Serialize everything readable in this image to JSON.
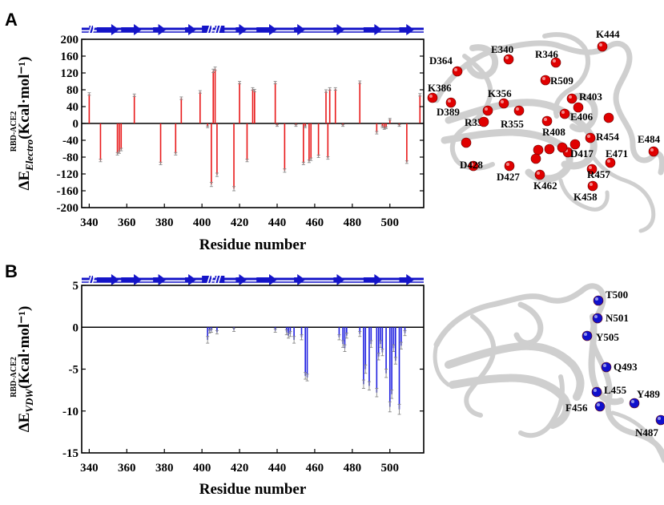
{
  "colors": {
    "electro_bar": "#e8191a",
    "vdw_bar": "#2020e0",
    "sse_bar": "#1414c8",
    "electro_sphere": "#e00000",
    "vdw_sphere": "#1010cc",
    "protein": "#d9d9d9"
  },
  "panels": {
    "A": {
      "letter": "A"
    },
    "B": {
      "letter": "B"
    }
  },
  "chart_data": [
    {
      "panel": "A",
      "type": "bar",
      "xlabel": "Residue number",
      "ylabel_super": "RBD-ACE2",
      "ylabel": "ΔE",
      "ylabel_sub": "Electro",
      "ylabel_unit": "(Kcal·mol⁻¹)",
      "xlim": [
        336,
        518
      ],
      "ylim": [
        -200,
        200
      ],
      "xticks": [
        340,
        360,
        380,
        400,
        420,
        440,
        460,
        480,
        500
      ],
      "yticks": [
        200,
        160,
        120,
        80,
        40,
        0,
        -40,
        -80,
        -120,
        -160,
        -200
      ],
      "ytick_labels": [
        "200",
        "160",
        "120",
        "80",
        "40",
        "0",
        "-40",
        "-80",
        "-120",
        "-160",
        "-200"
      ],
      "grid": false,
      "bars": [
        {
          "x": 340,
          "y": 70,
          "err": 3
        },
        {
          "x": 346,
          "y": -88,
          "err": 3
        },
        {
          "x": 355,
          "y": -72,
          "err": 3
        },
        {
          "x": 356,
          "y": -68,
          "err": 3
        },
        {
          "x": 357,
          "y": -62,
          "err": 3
        },
        {
          "x": 364,
          "y": 67,
          "err": 3
        },
        {
          "x": 378,
          "y": -95,
          "err": 3
        },
        {
          "x": 386,
          "y": -72,
          "err": 3
        },
        {
          "x": 389,
          "y": 60,
          "err": 3
        },
        {
          "x": 399,
          "y": 75,
          "err": 3
        },
        {
          "x": 403,
          "y": -8,
          "err": 2
        },
        {
          "x": 405,
          "y": -145,
          "err": 5
        },
        {
          "x": 406,
          "y": 125,
          "err": 4
        },
        {
          "x": 407,
          "y": 130,
          "err": 4
        },
        {
          "x": 408,
          "y": -122,
          "err": 4
        },
        {
          "x": 417,
          "y": -155,
          "err": 5
        },
        {
          "x": 420,
          "y": 97,
          "err": 3
        },
        {
          "x": 424,
          "y": -88,
          "err": 3
        },
        {
          "x": 427,
          "y": 82,
          "err": 3
        },
        {
          "x": 428,
          "y": 78,
          "err": 3
        },
        {
          "x": 439,
          "y": 97,
          "err": 3
        },
        {
          "x": 440,
          "y": -5,
          "err": 2
        },
        {
          "x": 444,
          "y": -112,
          "err": 4
        },
        {
          "x": 450,
          "y": -5,
          "err": 2
        },
        {
          "x": 454,
          "y": -95,
          "err": 3
        },
        {
          "x": 455,
          "y": -8,
          "err": 2
        },
        {
          "x": 457,
          "y": -90,
          "err": 3
        },
        {
          "x": 458,
          "y": -85,
          "err": 3
        },
        {
          "x": 462,
          "y": -78,
          "err": 3
        },
        {
          "x": 466,
          "y": 77,
          "err": 3
        },
        {
          "x": 467,
          "y": -82,
          "err": 3
        },
        {
          "x": 468,
          "y": 82,
          "err": 3
        },
        {
          "x": 471,
          "y": 82,
          "err": 3
        },
        {
          "x": 475,
          "y": -5,
          "err": 2
        },
        {
          "x": 484,
          "y": 98,
          "err": 3
        },
        {
          "x": 493,
          "y": -22,
          "err": 3
        },
        {
          "x": 496,
          "y": -8,
          "err": 2
        },
        {
          "x": 497,
          "y": -12,
          "err": 2
        },
        {
          "x": 498,
          "y": -10,
          "err": 2
        },
        {
          "x": 500,
          "y": 10,
          "err": 2
        },
        {
          "x": 505,
          "y": -5,
          "err": 2
        },
        {
          "x": 509,
          "y": -92,
          "err": 3
        },
        {
          "x": 516,
          "y": 68,
          "err": 3
        }
      ],
      "secondary_structure": {
        "arrows": [
          {
            "from": 344,
            "to": 356
          },
          {
            "from": 357,
            "to": 368
          },
          {
            "from": 374,
            "to": 381
          },
          {
            "from": 391,
            "to": 397
          },
          {
            "from": 418,
            "to": 424
          },
          {
            "from": 429,
            "to": 440
          },
          {
            "from": 449,
            "to": 455
          },
          {
            "from": 470,
            "to": 476
          },
          {
            "from": 486,
            "to": 496
          },
          {
            "from": 505,
            "to": 513
          }
        ],
        "blocks": [
          {
            "from": 340,
            "to": 342
          },
          {
            "from": 400,
            "to": 405
          },
          {
            "from": 407,
            "to": 412
          }
        ],
        "breaks": [
          341,
          404,
          408
        ]
      }
    },
    {
      "panel": "B",
      "type": "bar",
      "xlabel": "Residue number",
      "ylabel_super": "RBD-ACE2",
      "ylabel": "ΔE",
      "ylabel_sub": "VDW",
      "ylabel_unit": "(Kcal·mol⁻¹)",
      "xlim": [
        336,
        518
      ],
      "ylim": [
        -15,
        5
      ],
      "xticks": [
        340,
        360,
        380,
        400,
        420,
        440,
        460,
        480,
        500
      ],
      "yticks": [
        5,
        0,
        -5,
        -10,
        -15
      ],
      "ytick_labels": [
        "5",
        "0",
        "-5",
        "-10",
        "-15"
      ],
      "grid": false,
      "bars": [
        {
          "x": 403,
          "y": -1.5,
          "err": 0.4
        },
        {
          "x": 404,
          "y": -0.5,
          "err": 0.2
        },
        {
          "x": 405,
          "y": -0.4,
          "err": 0.2
        },
        {
          "x": 408,
          "y": -0.6,
          "err": 0.2
        },
        {
          "x": 417,
          "y": -0.3,
          "err": 0.2
        },
        {
          "x": 439,
          "y": -0.4,
          "err": 0.2
        },
        {
          "x": 445,
          "y": -0.6,
          "err": 0.3
        },
        {
          "x": 446,
          "y": -1.0,
          "err": 0.3
        },
        {
          "x": 447,
          "y": -0.8,
          "err": 0.3
        },
        {
          "x": 449,
          "y": -1.5,
          "err": 0.4
        },
        {
          "x": 453,
          "y": -1.2,
          "err": 0.3
        },
        {
          "x": 455,
          "y": -5.8,
          "err": 0.4
        },
        {
          "x": 456,
          "y": -6.0,
          "err": 0.4
        },
        {
          "x": 473,
          "y": -1.2,
          "err": 0.3
        },
        {
          "x": 475,
          "y": -2.0,
          "err": 0.4
        },
        {
          "x": 476,
          "y": -2.5,
          "err": 0.4
        },
        {
          "x": 477,
          "y": -1.0,
          "err": 0.3
        },
        {
          "x": 484,
          "y": -0.8,
          "err": 0.3
        },
        {
          "x": 486,
          "y": -6.8,
          "err": 0.5
        },
        {
          "x": 487,
          "y": -5.0,
          "err": 0.5
        },
        {
          "x": 489,
          "y": -7.0,
          "err": 0.5
        },
        {
          "x": 490,
          "y": -2.0,
          "err": 0.4
        },
        {
          "x": 493,
          "y": -7.8,
          "err": 0.5
        },
        {
          "x": 494,
          "y": -3.5,
          "err": 0.4
        },
        {
          "x": 495,
          "y": -2.0,
          "err": 0.4
        },
        {
          "x": 496,
          "y": -3.0,
          "err": 0.4
        },
        {
          "x": 498,
          "y": -5.5,
          "err": 0.5
        },
        {
          "x": 500,
          "y": -9.5,
          "err": 0.6
        },
        {
          "x": 501,
          "y": -8.0,
          "err": 0.5
        },
        {
          "x": 502,
          "y": -2.5,
          "err": 0.4
        },
        {
          "x": 503,
          "y": -4.0,
          "err": 0.4
        },
        {
          "x": 505,
          "y": -9.8,
          "err": 0.6
        },
        {
          "x": 506,
          "y": -2.2,
          "err": 0.4
        },
        {
          "x": 508,
          "y": -0.7,
          "err": 0.3
        }
      ],
      "secondary_structure": {
        "arrows": [
          {
            "from": 344,
            "to": 356
          },
          {
            "from": 357,
            "to": 368
          },
          {
            "from": 374,
            "to": 381
          },
          {
            "from": 391,
            "to": 397
          },
          {
            "from": 418,
            "to": 424
          },
          {
            "from": 429,
            "to": 440
          },
          {
            "from": 449,
            "to": 455
          },
          {
            "from": 470,
            "to": 476
          },
          {
            "from": 486,
            "to": 496
          },
          {
            "from": 505,
            "to": 513
          }
        ],
        "blocks": [
          {
            "from": 340,
            "to": 342
          },
          {
            "from": 400,
            "to": 405
          },
          {
            "from": 407,
            "to": 412
          }
        ],
        "breaks": [
          341,
          404,
          408
        ]
      }
    }
  ],
  "structure_A": {
    "labels": [
      "K444",
      "E340",
      "R346",
      "D364",
      "R509",
      "K386",
      "K356",
      "R403",
      "D389",
      "R357",
      "R355",
      "E406",
      "R408",
      "R454",
      "E484",
      "E471",
      "D417",
      "D428",
      "D427",
      "K462",
      "R457",
      "K458"
    ]
  },
  "structure_B": {
    "labels": [
      "T500",
      "N501",
      "Y505",
      "Q493",
      "L455",
      "Y489",
      "F456",
      "N487"
    ]
  }
}
